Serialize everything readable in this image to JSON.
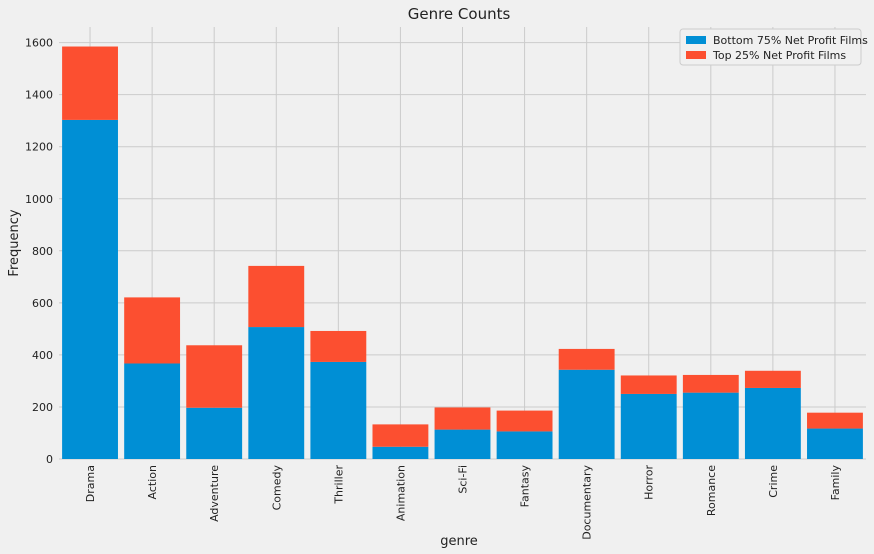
{
  "chart_data": {
    "type": "bar",
    "stacked": true,
    "title": "Genre Counts",
    "xlabel": "genre",
    "ylabel": "Frequency",
    "ylim": [
      0,
      1660
    ],
    "yticks": [
      0,
      200,
      400,
      600,
      800,
      1000,
      1200,
      1400,
      1600
    ],
    "grid": true,
    "legend_position": "top-right",
    "categories": [
      "Drama",
      "Action",
      "Adventure",
      "Comedy",
      "Thriller",
      "Animation",
      "Sci-Fi",
      "Fantasy",
      "Documentary",
      "Horror",
      "Romance",
      "Crime",
      "Family"
    ],
    "series": [
      {
        "name": "Bottom 75% Net Profit Films",
        "color": "#008fd5",
        "values": [
          1303,
          367,
          197,
          507,
          373,
          47,
          113,
          106,
          343,
          250,
          255,
          273,
          117
        ]
      },
      {
        "name": "Top 25% Net Profit Films",
        "color": "#fc4f30",
        "values": [
          282,
          254,
          240,
          235,
          119,
          86,
          85,
          80,
          80,
          71,
          68,
          66,
          61
        ]
      }
    ]
  }
}
